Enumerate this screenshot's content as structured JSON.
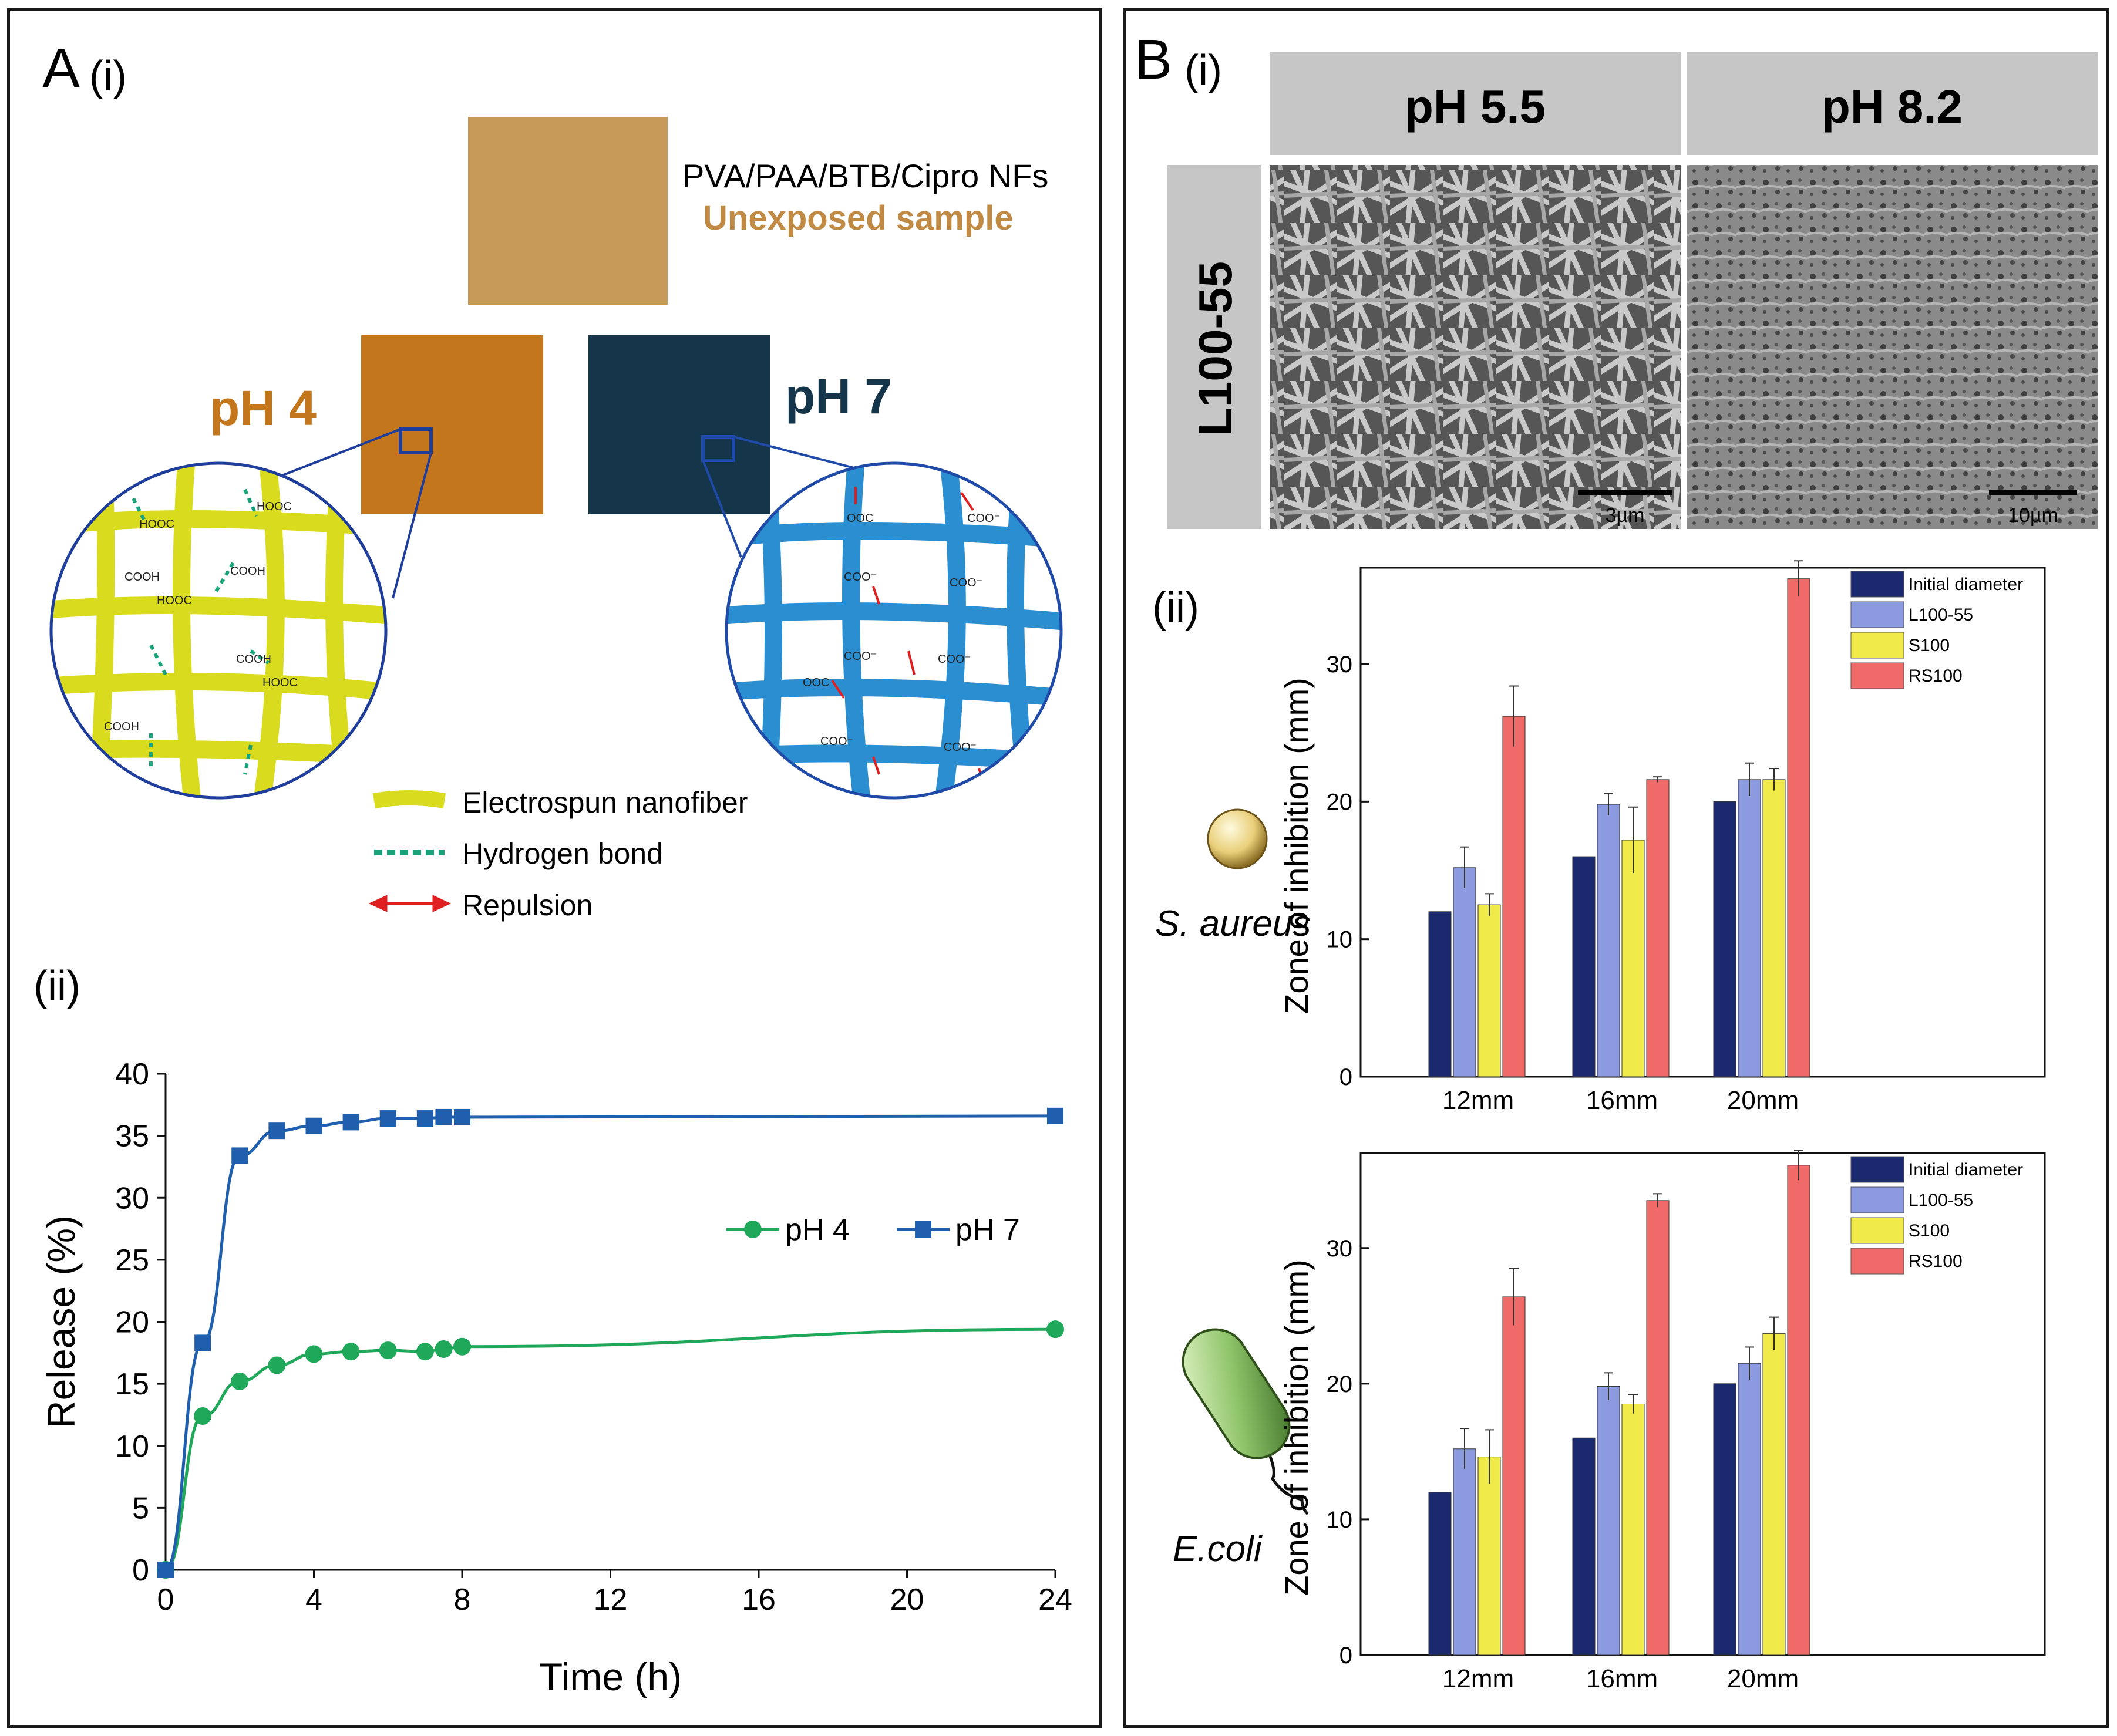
{
  "panel_a": {
    "letter": "A",
    "sub_i": "(i)",
    "sub_ii": "(ii)",
    "sample_name": "PVA/PAA/BTB/Cipro NFs",
    "sample_state": "Unexposed sample",
    "ph4_label": "pH 4",
    "ph7_label": "pH 7",
    "legend": {
      "fiber": "Electrospun nanofiber",
      "hbond": "Hydrogen bond",
      "repulsion": "Repulsion"
    },
    "colors": {
      "unexposed": "#c89a5a",
      "ph4": "#c4761c",
      "ph7": "#14354a",
      "fiber_yellow": "#d9dc1e",
      "fiber_blue": "#2b8ed1",
      "hbond": "#1aa37a",
      "repulsion": "#e02020"
    }
  },
  "panel_b": {
    "letter": "B",
    "sub_i": "(i)",
    "sub_ii": "(ii)",
    "col1": "pH 5.5",
    "col2": "pH 8.2",
    "row_label": "L100-55",
    "scale1": "3µm",
    "scale2": "10µm",
    "organism1": "S. aureus",
    "organism2": "E.coli"
  },
  "chart_data": [
    {
      "type": "line",
      "xlabel": "Time (h)",
      "ylabel": "Release (%)",
      "xlim": [
        0,
        24
      ],
      "ylim": [
        0,
        40
      ],
      "xticks": [
        0,
        4,
        8,
        12,
        16,
        20,
        24
      ],
      "yticks": [
        0,
        5,
        10,
        15,
        20,
        25,
        30,
        35,
        40
      ],
      "legend_position": "right",
      "series": [
        {
          "name": "pH 4",
          "color": "#1fa85a",
          "marker": "circle",
          "x": [
            0,
            1,
            2,
            3,
            4,
            5,
            6,
            7,
            7.5,
            8,
            24
          ],
          "y": [
            0,
            12.4,
            15.2,
            16.5,
            17.4,
            17.6,
            17.7,
            17.6,
            17.8,
            18.0,
            19.4
          ]
        },
        {
          "name": "pH 7",
          "color": "#1f5fad",
          "marker": "square",
          "x": [
            0,
            1,
            2,
            3,
            4,
            5,
            6,
            7,
            7.5,
            8,
            24
          ],
          "y": [
            0,
            18.3,
            33.4,
            35.4,
            35.8,
            36.1,
            36.4,
            36.4,
            36.5,
            36.5,
            36.6
          ]
        }
      ]
    },
    {
      "type": "bar",
      "ylabel": "Zone of inhibition (mm)",
      "categories": [
        "12mm",
        "16mm",
        "20mm"
      ],
      "ylim": [
        0,
        37
      ],
      "yticks": [
        0,
        10,
        20,
        30
      ],
      "legend_position": "top-right",
      "series": [
        {
          "name": "Initial diameter",
          "color": "#1b2a6e",
          "values": [
            12,
            16,
            20
          ],
          "errors": [
            0,
            0,
            0
          ]
        },
        {
          "name": "L100-55",
          "color": "#8c9be0",
          "values": [
            15.2,
            19.8,
            21.6
          ],
          "errors": [
            1.5,
            0.8,
            1.2
          ]
        },
        {
          "name": "S100",
          "color": "#f0ea4a",
          "values": [
            12.5,
            17.2,
            21.6
          ],
          "errors": [
            0.8,
            2.4,
            0.8
          ]
        },
        {
          "name": "RS100",
          "color": "#f06a6a",
          "values": [
            26.2,
            21.6,
            36.2
          ],
          "errors": [
            2.2,
            0.2,
            1.3
          ]
        }
      ]
    },
    {
      "type": "bar",
      "ylabel": "Zone of inhibition (mm)",
      "categories": [
        "12mm",
        "16mm",
        "20mm"
      ],
      "ylim": [
        0,
        37
      ],
      "yticks": [
        0,
        10,
        20,
        30
      ],
      "legend_position": "top-right",
      "series": [
        {
          "name": "Initial diameter",
          "color": "#1b2a6e",
          "values": [
            12,
            16,
            20
          ],
          "errors": [
            0,
            0,
            0
          ]
        },
        {
          "name": "L100-55",
          "color": "#8c9be0",
          "values": [
            15.2,
            19.8,
            21.5
          ],
          "errors": [
            1.5,
            1.0,
            1.2
          ]
        },
        {
          "name": "S100",
          "color": "#f0ea4a",
          "values": [
            14.6,
            18.5,
            23.7
          ],
          "errors": [
            2.0,
            0.7,
            1.2
          ]
        },
        {
          "name": "RS100",
          "color": "#f06a6a",
          "values": [
            26.4,
            33.5,
            36.1
          ],
          "errors": [
            2.1,
            0.5,
            1.1
          ]
        }
      ]
    }
  ]
}
